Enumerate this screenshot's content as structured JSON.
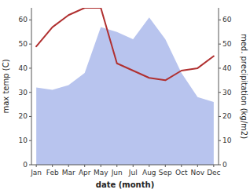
{
  "chart_data": {
    "type": "line",
    "categories": [
      "Jan",
      "Feb",
      "Mar",
      "Apr",
      "May",
      "Jun",
      "Jul",
      "Aug",
      "Sep",
      "Oct",
      "Nov",
      "Dec"
    ],
    "series": [
      {
        "type": "area",
        "color": "#b8c4ee",
        "axis": "y2",
        "values": [
          32,
          31,
          33,
          38,
          57,
          55,
          52,
          61,
          52,
          38,
          28,
          26
        ]
      },
      {
        "type": "line",
        "color": "#b03030",
        "values": [
          49,
          57,
          62,
          65,
          65,
          42,
          39,
          36,
          35,
          39,
          40,
          45
        ]
      }
    ],
    "ylim": [
      0,
      65
    ],
    "yticks": [
      0,
      10,
      20,
      30,
      40,
      50,
      60
    ],
    "y2lim": [
      0,
      65
    ],
    "y2ticks": [
      0,
      10,
      20,
      30,
      40,
      50,
      60
    ],
    "xlabel": "date (month)",
    "ylabel": "max temp (C)",
    "y2label": "med. precipitation (kg/m2)",
    "grid": false
  }
}
